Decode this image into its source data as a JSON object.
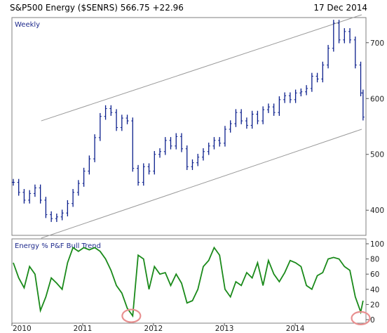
{
  "header": {
    "title": "S&P500 Energy ($SENRS) 566.75 +22.96",
    "date": "17 Dec 2014"
  },
  "chart_data": [
    {
      "type": "bar",
      "style": "ohlc",
      "label": "Weekly",
      "x_type": "date",
      "xlim": [
        "2010-01-01",
        "2015-01-01"
      ],
      "ylim": [
        355,
        745
      ],
      "y_ticks": [
        400,
        500,
        600,
        700
      ],
      "grid": false,
      "bar_color": "#0a1e8c",
      "x": [
        "2010-01-08",
        "2010-02-05",
        "2010-03-05",
        "2010-04-02",
        "2010-04-30",
        "2010-05-28",
        "2010-06-25",
        "2010-07-23",
        "2010-08-20",
        "2010-09-17",
        "2010-10-15",
        "2010-11-12",
        "2010-12-10",
        "2011-01-07",
        "2011-02-04",
        "2011-03-04",
        "2011-04-01",
        "2011-04-29",
        "2011-05-27",
        "2011-06-24",
        "2011-07-22",
        "2011-08-19",
        "2011-09-16",
        "2011-10-14",
        "2011-11-11",
        "2011-12-09",
        "2012-01-06",
        "2012-02-03",
        "2012-03-02",
        "2012-03-30",
        "2012-04-27",
        "2012-05-25",
        "2012-06-22",
        "2012-07-20",
        "2012-08-17",
        "2012-09-14",
        "2012-10-12",
        "2012-11-09",
        "2012-12-07",
        "2013-01-04",
        "2013-02-01",
        "2013-03-01",
        "2013-03-29",
        "2013-04-26",
        "2013-05-24",
        "2013-06-21",
        "2013-07-19",
        "2013-08-16",
        "2013-09-13",
        "2013-10-11",
        "2013-11-08",
        "2013-12-06",
        "2014-01-03",
        "2014-01-31",
        "2014-02-28",
        "2014-03-28",
        "2014-04-25",
        "2014-05-23",
        "2014-06-20",
        "2014-07-18",
        "2014-08-15",
        "2014-09-12",
        "2014-10-10",
        "2014-11-07",
        "2014-12-05",
        "2014-12-17"
      ],
      "values": [
        450,
        432,
        418,
        430,
        440,
        418,
        392,
        385,
        388,
        395,
        412,
        432,
        448,
        470,
        492,
        530,
        568,
        582,
        575,
        548,
        565,
        560,
        475,
        450,
        478,
        470,
        500,
        505,
        525,
        515,
        532,
        510,
        478,
        485,
        495,
        505,
        515,
        525,
        520,
        545,
        555,
        575,
        560,
        552,
        572,
        560,
        580,
        585,
        575,
        598,
        605,
        598,
        610,
        612,
        618,
        640,
        635,
        660,
        690,
        735,
        705,
        720,
        705,
        660,
        610,
        566.75
      ],
      "trend_channel": {
        "upper": [
          [
            "2010-06-01",
            560
          ],
          [
            "2014-12-10",
            750
          ]
        ],
        "lower": [
          [
            "2010-06-01",
            350
          ],
          [
            "2014-12-10",
            545
          ]
        ]
      }
    },
    {
      "type": "line",
      "label": "Energy % P&F Bull Trend",
      "x_type": "date",
      "xlim": [
        "2010-01-01",
        "2015-01-01"
      ],
      "ylim": [
        0,
        100
      ],
      "y_ticks": [
        0,
        20,
        40,
        60,
        80,
        100
      ],
      "grid": false,
      "line_color": "#1a8a1a",
      "x": [
        "2010-01-08",
        "2010-02-05",
        "2010-03-05",
        "2010-04-02",
        "2010-04-30",
        "2010-05-28",
        "2010-06-25",
        "2010-07-23",
        "2010-08-20",
        "2010-09-17",
        "2010-10-15",
        "2010-11-12",
        "2010-12-10",
        "2011-01-07",
        "2011-02-04",
        "2011-03-04",
        "2011-04-01",
        "2011-04-29",
        "2011-05-27",
        "2011-06-24",
        "2011-07-22",
        "2011-08-19",
        "2011-09-16",
        "2011-10-14",
        "2011-11-11",
        "2011-12-09",
        "2012-01-06",
        "2012-02-03",
        "2012-03-02",
        "2012-03-30",
        "2012-04-27",
        "2012-05-25",
        "2012-06-22",
        "2012-07-20",
        "2012-08-17",
        "2012-09-14",
        "2012-10-12",
        "2012-11-09",
        "2012-12-07",
        "2013-01-04",
        "2013-02-01",
        "2013-03-01",
        "2013-03-29",
        "2013-04-26",
        "2013-05-24",
        "2013-06-21",
        "2013-07-19",
        "2013-08-16",
        "2013-09-13",
        "2013-10-11",
        "2013-11-08",
        "2013-12-06",
        "2014-01-03",
        "2014-01-31",
        "2014-02-28",
        "2014-03-28",
        "2014-04-25",
        "2014-05-23",
        "2014-06-20",
        "2014-07-18",
        "2014-08-15",
        "2014-09-12",
        "2014-10-10",
        "2014-11-07",
        "2014-12-05",
        "2014-12-17"
      ],
      "values": [
        75,
        55,
        42,
        70,
        60,
        12,
        30,
        55,
        48,
        40,
        75,
        95,
        90,
        95,
        92,
        95,
        90,
        80,
        65,
        45,
        35,
        15,
        5,
        85,
        80,
        40,
        70,
        60,
        62,
        45,
        60,
        48,
        22,
        25,
        40,
        70,
        78,
        95,
        85,
        40,
        30,
        50,
        45,
        62,
        55,
        75,
        45,
        78,
        60,
        50,
        62,
        78,
        75,
        70,
        45,
        40,
        58,
        62,
        80,
        82,
        80,
        70,
        65,
        30,
        10,
        25
      ],
      "markers": [
        {
          "x": "2011-09-09",
          "y": 5
        },
        {
          "x": "2014-12-05",
          "y": 2
        }
      ],
      "marker_color": "#e89090"
    }
  ],
  "x_axis": {
    "tick_labels": [
      "2010",
      "2011",
      "2012",
      "2013",
      "2014"
    ],
    "tick_dates": [
      "2010-01-01",
      "2011-01-01",
      "2012-01-01",
      "2013-01-01",
      "2014-01-01"
    ]
  }
}
